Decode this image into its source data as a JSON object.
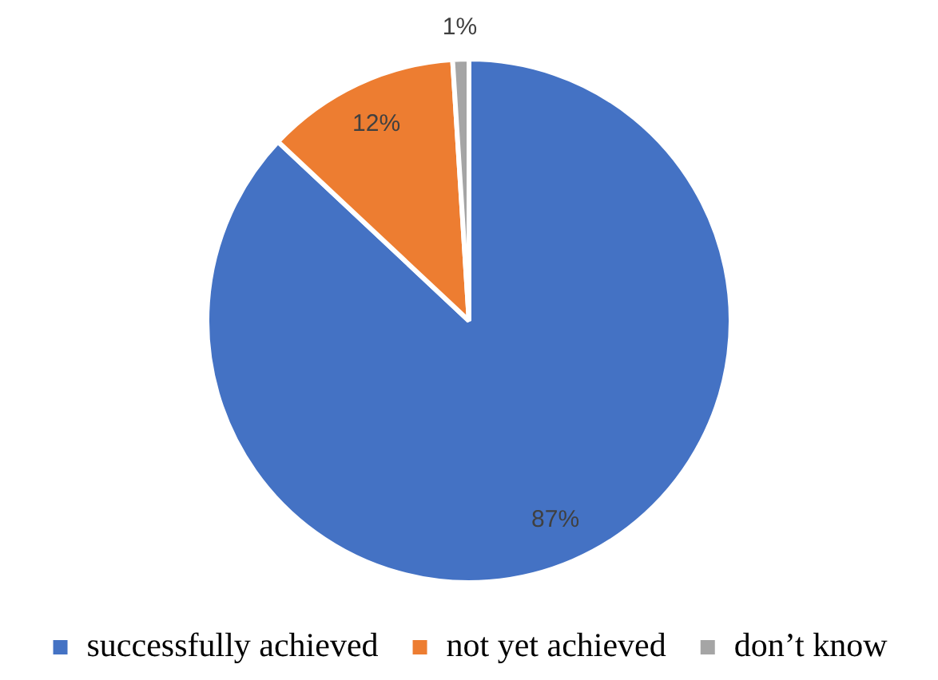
{
  "chart_data": {
    "type": "pie",
    "categories": [
      "successfully achieved",
      "not yet achieved",
      "don’t know"
    ],
    "values": [
      87,
      12,
      1
    ],
    "colors": [
      "#4472c4",
      "#ed7d31",
      "#a5a5a5"
    ],
    "value_labels": [
      "87%",
      "12%",
      "1%"
    ],
    "legend": "bottom"
  }
}
